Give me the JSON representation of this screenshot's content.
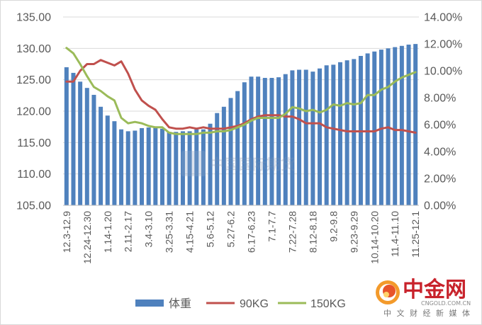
{
  "chart_data": {
    "type": "bar",
    "categories": [
      "12.3-12.9",
      "",
      "",
      "12.24-12.30",
      "",
      "",
      "1.14-1.20",
      "",
      "",
      "2.11-2.17",
      "",
      "",
      "3.4-3.10",
      "",
      "",
      "3.25-3.31",
      "",
      "",
      "4.15-4.21",
      "",
      "",
      "5.6-5.12",
      "",
      "",
      "5.27-6.2",
      "",
      "",
      "6.17-6.23",
      "",
      "",
      "7.1-7.7",
      "",
      "",
      "7.22-7.28",
      "",
      "",
      "8.12-8.18",
      "",
      "",
      "9.2-9.8",
      "",
      "",
      "9.23-9.29",
      "",
      "",
      "10.14-10.20",
      "",
      "",
      "11.4-11.10",
      "",
      "",
      "11.25-12.1"
    ],
    "series": [
      {
        "name": "体重",
        "type": "bar",
        "axis": "left",
        "color": "#4f81bd",
        "values": [
          127.0,
          126.1,
          124.7,
          123.7,
          122.6,
          120.7,
          119.3,
          118.4,
          117.1,
          116.8,
          116.9,
          117.3,
          117.4,
          117.5,
          117.2,
          116.7,
          116.7,
          116.8,
          116.8,
          117.1,
          117.1,
          118.0,
          119.7,
          120.7,
          122.1,
          123.2,
          124.6,
          125.5,
          125.5,
          125.3,
          125.3,
          125.4,
          125.9,
          126.5,
          126.6,
          126.6,
          126.3,
          126.8,
          127.3,
          127.4,
          127.8,
          128.1,
          128.3,
          128.8,
          129.2,
          129.5,
          129.8,
          130.0,
          130.2,
          130.4,
          130.6,
          130.7
        ]
      },
      {
        "name": "90KG",
        "type": "line",
        "axis": "right",
        "color": "#c0504d",
        "values": [
          9.2,
          9.2,
          10.0,
          10.5,
          10.5,
          10.8,
          10.6,
          10.4,
          10.7,
          9.8,
          8.6,
          7.8,
          7.4,
          7.1,
          6.4,
          5.8,
          5.7,
          5.7,
          5.8,
          5.7,
          5.8,
          5.7,
          5.7,
          5.7,
          5.8,
          5.9,
          6.1,
          6.4,
          6.6,
          6.7,
          6.7,
          6.7,
          6.6,
          6.6,
          6.4,
          6.1,
          6.1,
          6.1,
          5.8,
          5.7,
          5.6,
          5.5,
          5.5,
          5.5,
          5.5,
          5.5,
          5.7,
          5.8,
          5.6,
          5.6,
          5.5,
          5.4
        ]
      },
      {
        "name": "150KG",
        "type": "line",
        "axis": "right",
        "color": "#9bbb59",
        "values": [
          11.7,
          11.3,
          10.5,
          9.6,
          8.8,
          8.5,
          8.1,
          7.8,
          6.5,
          6.1,
          6.2,
          6.1,
          5.9,
          5.8,
          5.8,
          5.4,
          5.3,
          5.3,
          5.3,
          5.3,
          5.4,
          5.4,
          5.5,
          5.5,
          5.6,
          5.8,
          6.0,
          6.3,
          6.5,
          6.5,
          6.5,
          6.5,
          6.8,
          7.3,
          7.2,
          7.0,
          7.1,
          6.9,
          7.1,
          7.5,
          7.4,
          7.6,
          7.5,
          7.6,
          8.2,
          8.2,
          8.6,
          8.8,
          9.2,
          9.5,
          9.7,
          9.9
        ]
      }
    ],
    "y_axis": {
      "min": 105,
      "max": 135,
      "ticks": [
        "105.00",
        "110.00",
        "115.00",
        "120.00",
        "125.00",
        "130.00",
        "135.00"
      ]
    },
    "y2_axis": {
      "min": 0,
      "max": 14,
      "ticks": [
        "0.00%",
        "2.00%",
        "4.00%",
        "6.00%",
        "8.00%",
        "10.00%",
        "12.00%",
        "14.00%"
      ]
    },
    "grid": true,
    "legend": "bottom"
  },
  "watermark": {
    "text": "中国国际期货"
  },
  "logo": {
    "name": "中金网",
    "domain": "CNGOLD.COM.CN",
    "tagline": "中 文 财 经 新 媒 体",
    "color": "#c8222b"
  }
}
